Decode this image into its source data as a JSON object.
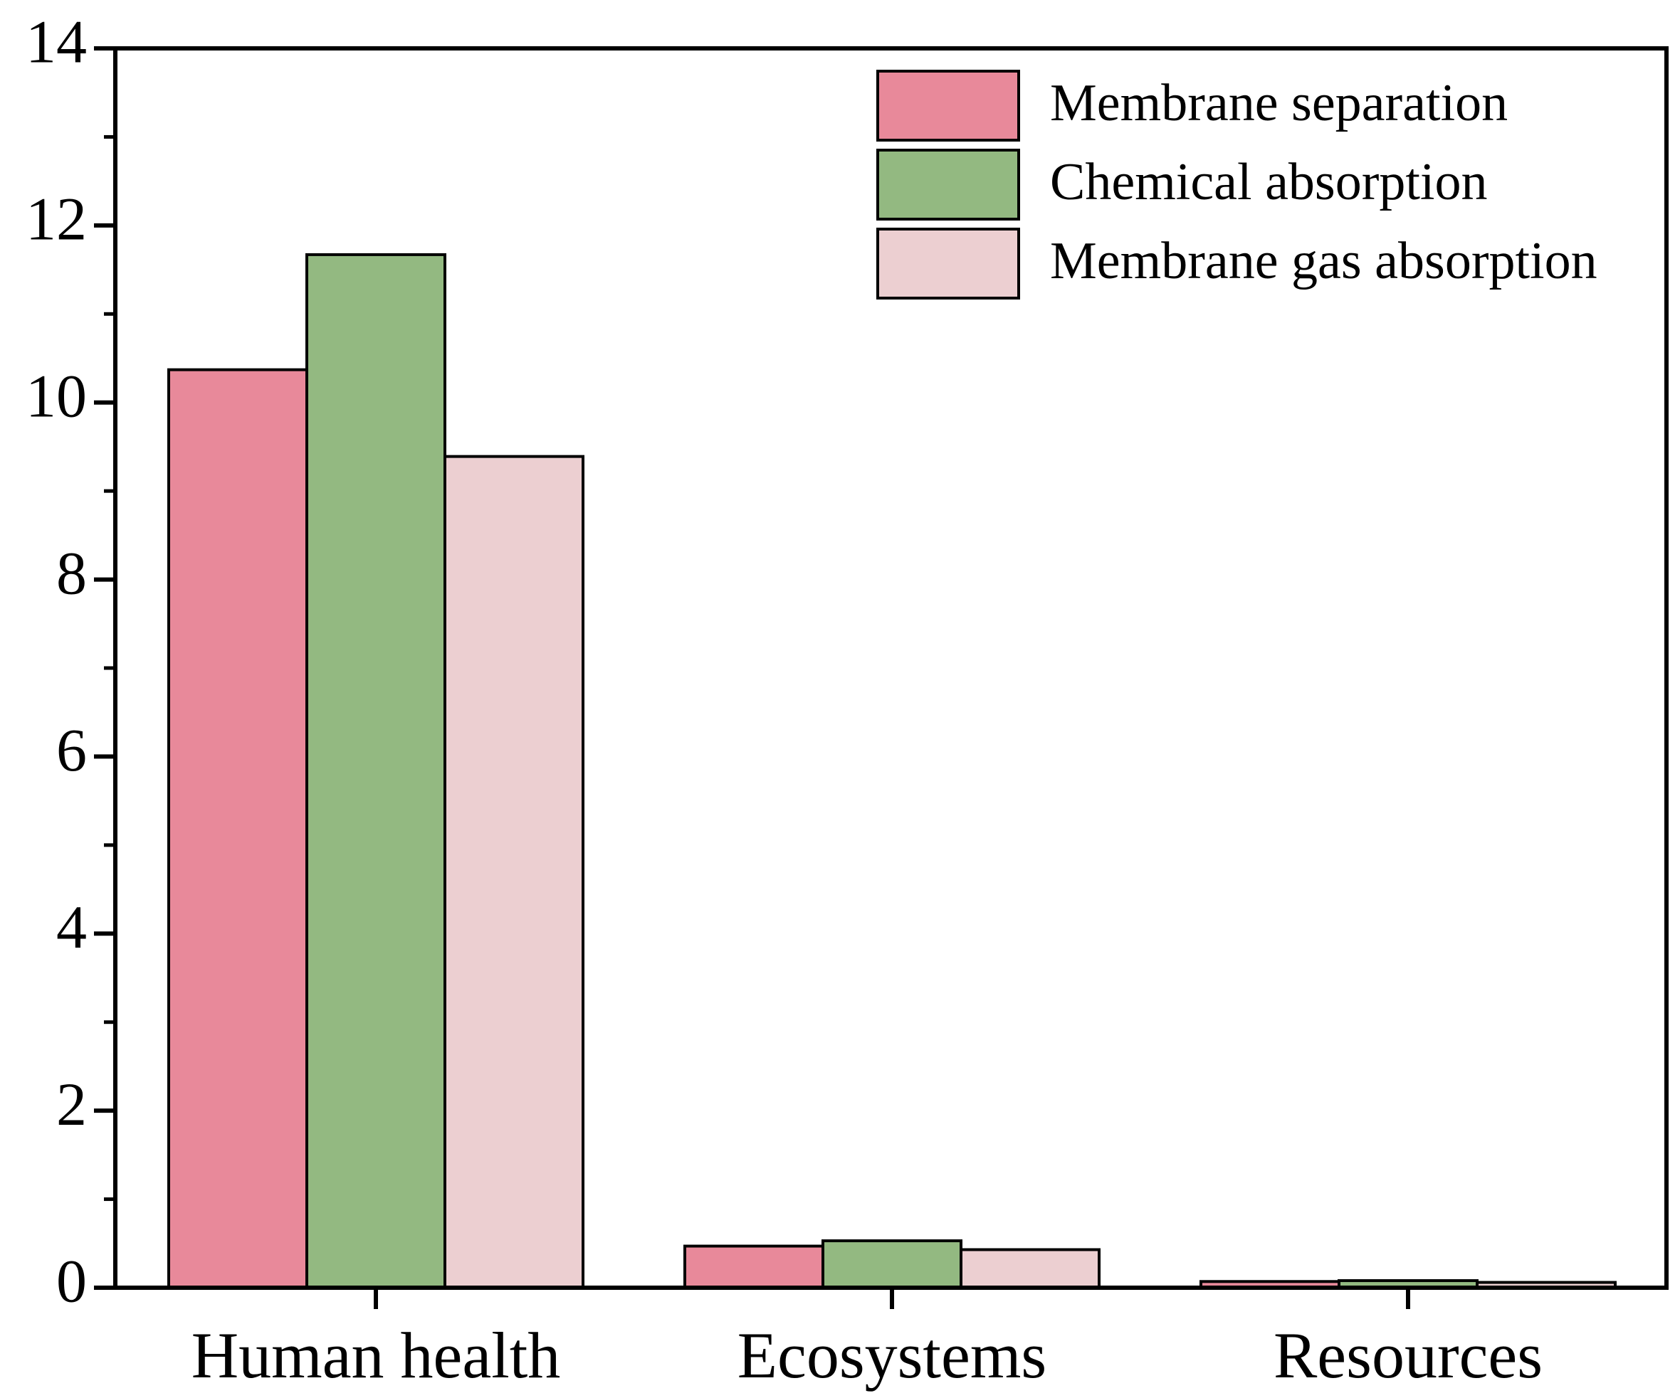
{
  "chart_data": {
    "type": "bar",
    "categories": [
      "Human health",
      "Ecosystems",
      "Resources"
    ],
    "series": [
      {
        "name": "Membrane separation",
        "color": "#e8899a",
        "values": [
          10.37,
          0.47,
          0.07
        ]
      },
      {
        "name": "Chemical absorption",
        "color": "#93b981",
        "values": [
          11.67,
          0.53,
          0.08
        ]
      },
      {
        "name": "Membrane gas absorption",
        "color": "#eccfd1",
        "values": [
          9.39,
          0.43,
          0.06
        ]
      }
    ],
    "ylim": [
      0,
      14
    ],
    "yticks": [
      0,
      2,
      4,
      6,
      8,
      10,
      12,
      14
    ],
    "legend": "upper right",
    "grid": false
  }
}
